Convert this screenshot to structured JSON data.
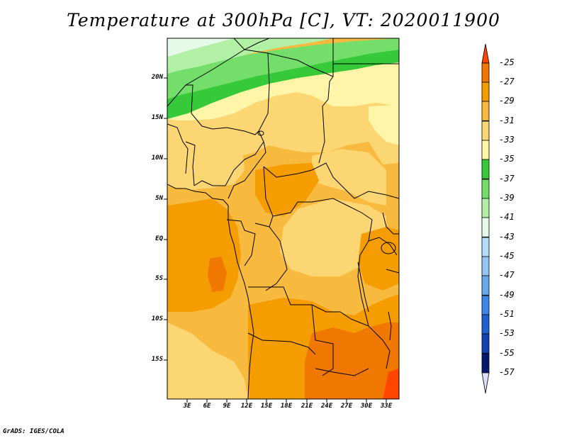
{
  "title": "Temperature at 300hPa [C], VT: 2020011900",
  "credit": "GrADS: IGES/COLA",
  "map": {
    "lat_labels": [
      "20N",
      "15N",
      "10N",
      "5N",
      "EQ",
      "5S",
      "10S",
      "15S"
    ],
    "lon_labels": [
      "3E",
      "6E",
      "9E",
      "12E",
      "15E",
      "18E",
      "21E",
      "24E",
      "27E",
      "30E",
      "33E"
    ]
  },
  "colorbar": {
    "labels": [
      "-25",
      "-27",
      "-29",
      "-31",
      "-33",
      "-35",
      "-37",
      "-39",
      "-41",
      "-43",
      "-45",
      "-47",
      "-49",
      "-51",
      "-53",
      "-55",
      "-57"
    ],
    "colors": [
      "#ff4500",
      "#f07800",
      "#f59d00",
      "#f8b93f",
      "#fbd672",
      "#fff5a8",
      "#36c93a",
      "#73df6a",
      "#b2f0a6",
      "#e5fae9",
      "#b6ddf8",
      "#94c6f4",
      "#6aa8ee",
      "#3e86e8",
      "#1f60d3",
      "#1242b0",
      "#051870",
      "#dcdcf8"
    ]
  },
  "colors": {
    "c25": "#ff4500",
    "c27": "#f07800",
    "c29": "#f59d00",
    "c31": "#f8b93f",
    "c33": "#fbd672",
    "c35": "#fff5a8",
    "c37": "#36c93a",
    "c39": "#73df6a",
    "c41": "#b2f0a6",
    "c43": "#e5fae9"
  }
}
